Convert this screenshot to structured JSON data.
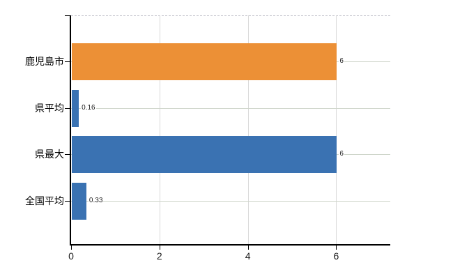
{
  "chart_data": {
    "type": "bar",
    "orientation": "horizontal",
    "title": "",
    "xlabel": "",
    "ylabel": "",
    "categories": [
      "鹿児島市",
      "県平均",
      "県最大",
      "全国平均"
    ],
    "values": [
      6,
      0.16,
      6,
      0.33
    ],
    "data_labels": [
      "6",
      "0.16",
      "6",
      "0.33"
    ],
    "bar_colors": [
      "#ec9036",
      "#3a72b2",
      "#3a72b2",
      "#3a72b2"
    ],
    "xticks": [
      0,
      2,
      4,
      6
    ],
    "xtick_labels": [
      "0",
      "2",
      "4",
      "6"
    ],
    "xlim": [
      0,
      7.2
    ],
    "grid": true,
    "legend": false
  },
  "colors": {
    "background": "#ffffff",
    "axis": "#000000",
    "grid_vertical": "#d9d9d9",
    "grid_horizontal": "#cfd6cb",
    "grid_top_dashed": "#c6c6cf",
    "category_text": "#000000",
    "tick_text": "#1a1a1a",
    "value_text": "#1a1a1a"
  }
}
